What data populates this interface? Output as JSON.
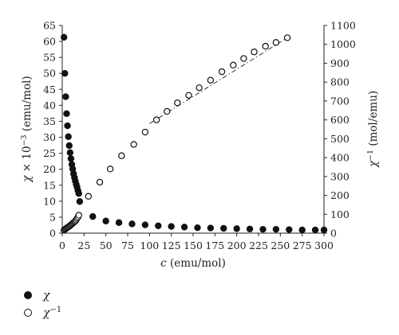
{
  "chart_data": {
    "type": "scatter",
    "title": "",
    "xlabel": {
      "var": "c",
      "unit": "(emu/mol)"
    },
    "ylabel_left": {
      "var": "χ",
      "text": " × 10",
      "sup": "−3",
      "unit": "(emu/mol)"
    },
    "ylabel_right": {
      "var": "χ",
      "sup": "−1",
      "unit": "(mol/emu)"
    },
    "xlim": [
      0,
      300
    ],
    "ylim_left": [
      0,
      65
    ],
    "ylim_right": [
      0,
      1100
    ],
    "x_ticks": [
      "0",
      "25",
      "50",
      "75",
      "100",
      "125",
      "150",
      "175",
      "200",
      "225",
      "250",
      "275",
      "300"
    ],
    "y_left_ticks": [
      "0",
      "5",
      "10",
      "15",
      "20",
      "25",
      "30",
      "35",
      "40",
      "45",
      "50",
      "55",
      "60",
      "65"
    ],
    "y_right_ticks": [
      "0",
      "100",
      "200",
      "300",
      "400",
      "500",
      "600",
      "700",
      "800",
      "900",
      "1000",
      "1100"
    ],
    "grid": false,
    "legend_position": "bottom-left",
    "series": [
      {
        "name": "χ",
        "axis": "left",
        "marker": "filled-circle",
        "color": "#111111",
        "x": [
          2,
          3,
          4,
          5,
          6,
          7,
          8,
          9,
          10,
          11,
          12,
          13,
          14,
          15,
          16,
          17,
          18,
          19,
          20,
          35,
          50,
          65,
          80,
          95,
          110,
          125,
          140,
          155,
          170,
          185,
          200,
          215,
          230,
          245,
          260,
          275,
          290,
          300
        ],
        "y": [
          61.3,
          50.0,
          42.7,
          37.4,
          33.6,
          30.2,
          27.4,
          25.2,
          23.3,
          21.5,
          20.1,
          18.6,
          17.4,
          16.3,
          15.3,
          14.4,
          13.3,
          12.4,
          9.9,
          5.2,
          3.8,
          3.3,
          2.9,
          2.6,
          2.3,
          2.1,
          1.9,
          1.7,
          1.6,
          1.5,
          1.4,
          1.3,
          1.2,
          1.2,
          1.1,
          1.0,
          1.0,
          1.0
        ]
      },
      {
        "name": "χ⁻¹",
        "axis": "right",
        "marker": "open-circle",
        "color": "#111111",
        "x": [
          2,
          3,
          4,
          5,
          6,
          7,
          8,
          9,
          10,
          11,
          12,
          13,
          14,
          15,
          16,
          17,
          18,
          19,
          30,
          43,
          55,
          68,
          82,
          95,
          108,
          120,
          132,
          145,
          157,
          170,
          183,
          196,
          208,
          220,
          233,
          245,
          258
        ],
        "y": [
          16,
          20,
          23,
          27,
          30,
          33,
          36,
          40,
          44,
          48,
          52,
          56,
          60,
          64,
          70,
          78,
          85,
          95,
          195,
          270,
          340,
          410,
          470,
          535,
          600,
          645,
          690,
          730,
          770,
          810,
          855,
          890,
          925,
          960,
          990,
          1010,
          1035
        ]
      }
    ],
    "fit_line": {
      "axis": "right",
      "style": "dash-dot",
      "x": [
        100,
        258
      ],
      "y": [
        580,
        1035
      ]
    }
  },
  "legend": {
    "items": [
      {
        "var": "χ",
        "sup": "",
        "marker": "filled"
      },
      {
        "var": "χ",
        "sup": "−1",
        "marker": "open"
      }
    ]
  }
}
